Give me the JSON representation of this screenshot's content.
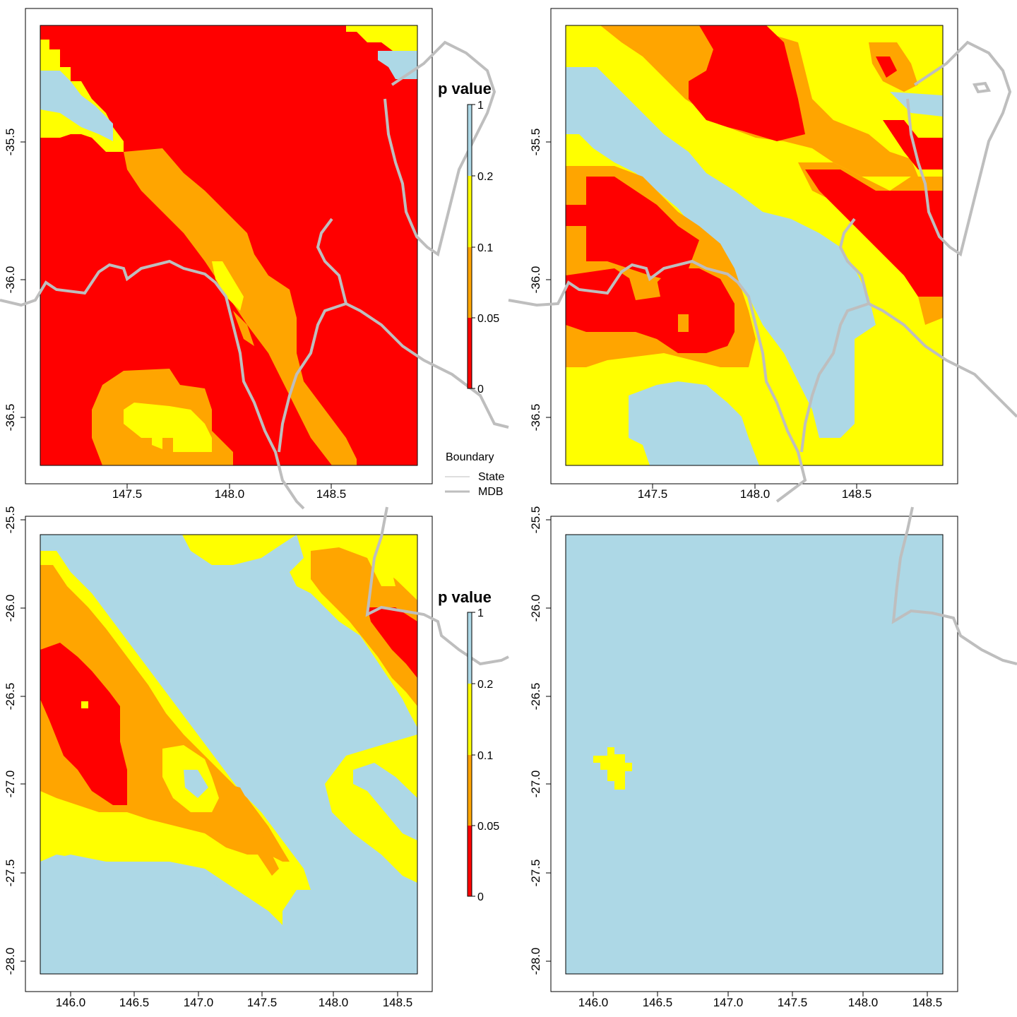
{
  "colors": {
    "p_0_005": "#ff0000",
    "p_005_01": "#ffa500",
    "p_01_02": "#ffff00",
    "p_02_1": "#add8e6",
    "state_line": "#bebebe",
    "mdb_line": "#bebebe",
    "frame": "#000000"
  },
  "legend_p": {
    "title": "p value",
    "ticks": [
      "1",
      "0.2",
      "0.1",
      "0.05",
      "0"
    ]
  },
  "legend_boundary": {
    "title": "Boundary",
    "items": [
      {
        "label": "State",
        "line": "thin"
      },
      {
        "label": "MDB",
        "line": "thick"
      }
    ]
  },
  "chart_data": [
    {
      "type": "heatmap",
      "panel": "top-left",
      "xticks": [
        "147.5",
        "148.0",
        "148.5"
      ],
      "yticks": [
        "-35.5",
        "-36.0",
        "-36.5"
      ],
      "xlim": [
        147.05,
        148.9
      ],
      "ylim": [
        -36.78,
        -35.08
      ],
      "categories": [
        "0-0.05",
        "0.05-0.1",
        "0.1-0.2",
        "0.2-1"
      ],
      "dominant_category": "0-0.05"
    },
    {
      "type": "heatmap",
      "panel": "top-right",
      "xticks": [
        "147.5",
        "148.0",
        "148.5"
      ],
      "yticks": [
        "-35.5",
        "-36.0",
        "-36.5"
      ],
      "xlim": [
        147.05,
        148.9
      ],
      "ylim": [
        -36.78,
        -35.08
      ],
      "categories": [
        "0-0.05",
        "0.05-0.1",
        "0.1-0.2",
        "0.2-1"
      ],
      "dominant_category": "mixed"
    },
    {
      "type": "heatmap",
      "panel": "bottom-left",
      "xticks": [
        "146.0",
        "146.5",
        "147.0",
        "147.5",
        "148.0",
        "148.5"
      ],
      "yticks": [
        "-25.5",
        "-26.0",
        "-26.5",
        "-27.0",
        "-27.5",
        "-28.0"
      ],
      "xlim": [
        145.82,
        148.62
      ],
      "ylim": [
        -28.08,
        -25.58
      ],
      "categories": [
        "0-0.05",
        "0.05-0.1",
        "0.1-0.2",
        "0.2-1"
      ],
      "dominant_category": "0.2-1"
    },
    {
      "type": "heatmap",
      "panel": "bottom-right",
      "xticks": [
        "146.0",
        "146.5",
        "147.0",
        "147.5",
        "148.0",
        "148.5"
      ],
      "yticks": [
        "-25.5",
        "-26.0",
        "-26.5",
        "-27.0",
        "-27.5",
        "-28.0"
      ],
      "xlim": [
        145.82,
        148.62
      ],
      "ylim": [
        -28.08,
        -25.58
      ],
      "categories": [
        "0.1-0.2",
        "0.2-1"
      ],
      "dominant_category": "0.2-1"
    }
  ]
}
